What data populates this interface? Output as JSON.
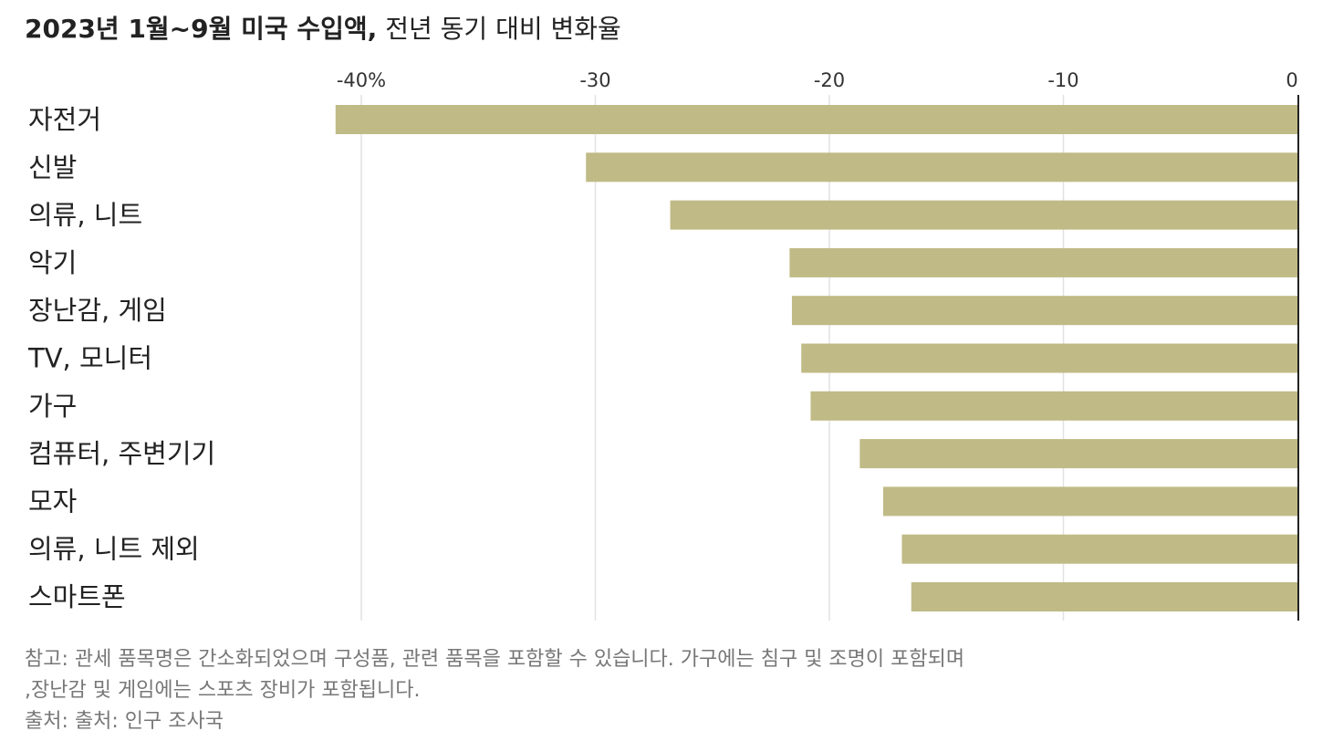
{
  "title_bold": "2023년 1월~9월 미국 수입액,",
  "title_rest": " 전년 동기 대비 변화율",
  "chart_data": {
    "type": "bar",
    "orientation": "horizontal",
    "categories": [
      "자전거",
      "신발",
      "의류, 니트",
      "악기",
      "장난감, 게임",
      "TV, 모니터",
      "가구",
      "컴퓨터, 주변기기",
      "모자",
      "의류, 니트 제외",
      "스마트폰"
    ],
    "values": [
      -41.1,
      -30.4,
      -26.8,
      -21.7,
      -21.6,
      -21.2,
      -20.8,
      -18.7,
      -17.7,
      -16.9,
      -16.5
    ],
    "x_ticks": [
      -40,
      -30,
      -20,
      -10,
      0
    ],
    "x_tick_labels": [
      "-40%",
      "-30",
      "-20",
      "-10",
      "0"
    ],
    "xlim": [
      -41.5,
      0
    ],
    "grid": true,
    "bar_color": "#c0ba86"
  },
  "notes": {
    "line1": "참고: 관세 품목명은 간소화되었으며 구성품, 관련 품목을 포함할 수 있습니다. 가구에는 침구 및 조명이 포함되며",
    "line2": ",장난감 및 게임에는 스포츠 장비가 포함됩니다.",
    "line3": "출처: 출처: 인구 조사국"
  }
}
